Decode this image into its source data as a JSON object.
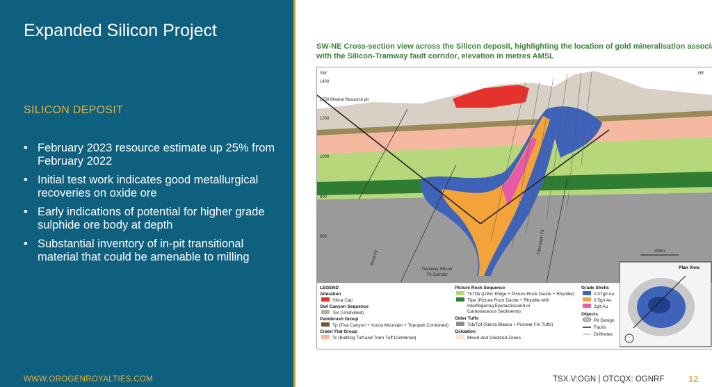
{
  "slide": {
    "title": "Expanded Silicon Project",
    "subheading": "SILICON DEPOSIT",
    "bullets": [
      "February 2023 resource estimate up 25% from February 2022",
      "Initial test work indicates good metallurgical recoveries on oxide ore",
      "Early indications of potential for higher grade sulphide ore body at depth",
      "Substantial inventory of in-pit transitional material that could be amenable to milling"
    ],
    "bullet_glyph": "•",
    "website": "WWW.OROGENROYALTIES.COM",
    "ticker": "TSX.V:OGN  |  OTCQX: OGNRF",
    "page_number": "12"
  },
  "figure": {
    "caption_line1": "SW-NE Cross-section view across the Silicon deposit, highlighting the location of gold mineralisation associated",
    "caption_line2": "with the Silicon-Tramway fault corridor, elevation in metres AMSL",
    "sw_label": "SW",
    "ne_label": "NE",
    "elevations": [
      "1400",
      "1200",
      "1000",
      "800",
      "600"
    ],
    "pit_label": "1750 Mineral Resource pit",
    "fault_label_1": "Tramway-Silicon",
    "fault_label_2": "Flt Corridor",
    "fault_name_a": "Bond Flt",
    "fault_name_b": "Thompson Flt",
    "scale_label": "400m",
    "plan_view_label": "Plan View",
    "legend": {
      "title": "LEGEND",
      "alteration": "Alteration",
      "silica_cap": "Silica Cap",
      "owl_canyon": "Owl Canyon Sequence",
      "toc": "Toc (Undivided)",
      "paintbrush": "Paintbrush Group",
      "tp": "Tp (Tiva Canyon + Yucca Mountain + Topopah Combined)",
      "crater_flat": "Crater Flat Group",
      "tc": "Tc (Bullfrog Tuff and Tram Tuff Combined)",
      "picture_rock": "Picture Rock Sequence",
      "tlr": "Tlr/Tlp (Lithic Ridge + Picture Rock Dacite + Rhyolite)",
      "tlpe_1": "Tlpe (Picture Rock Dacite + Rhyolite with",
      "tlpe_2": "Interfingering Epiclastics/and or",
      "tlpe_3": "Carbonaceous Sediments)",
      "older_tuffs": "Older Tuffs",
      "tsb": "Tsb/Tpf (Sierra Blanca + Pioneer Fm Tuffs)",
      "oxidation": "Oxidation",
      "mixed": "Mixed and Oxidized Zones",
      "grade_shells": "Grade Shells",
      "g1": "0.07g/t Au",
      "g2": "0.5g/t Au",
      "g3": "2g/t Au",
      "objects": "Objects",
      "pit_design": "Pit Design",
      "faults": "Faults",
      "drillholes": "Drillholes"
    },
    "colors": {
      "silica_cap": "#e5322d",
      "toc": "#b7b0a5",
      "tp": "#6b5a2a",
      "tc": "#f4b9a0",
      "tlr": "#b6d77a",
      "tlpe": "#2f7d32",
      "tsb": "#8d8d8d",
      "oxidation": "#fde9c8",
      "grade_low": "#3f63b8",
      "grade_mid": "#f2a33a",
      "grade_high": "#e65aa8"
    }
  }
}
